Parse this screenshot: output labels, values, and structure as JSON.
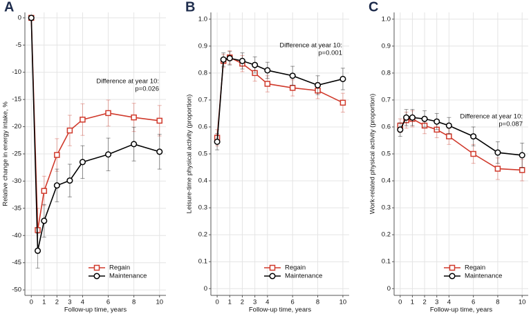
{
  "chart_data": [
    {
      "type": "line",
      "label": "A",
      "ylabel": "Relative change in energy intake, %",
      "xlabel": "Follow-up time, years",
      "annotation": [
        "Difference at year 10:",
        "p=0.026"
      ],
      "x": [
        0,
        0.5,
        1,
        2,
        3,
        4,
        6,
        8,
        10
      ],
      "xlim": [
        -0.5,
        10.5
      ],
      "xticks": [
        0,
        1,
        2,
        3,
        4,
        6,
        8,
        10
      ],
      "ylim": [
        -51,
        1
      ],
      "yticks": [
        0,
        -5,
        -10,
        -15,
        -20,
        -25,
        -30,
        -35,
        -40,
        -45,
        -50
      ],
      "grid": true,
      "series": [
        {
          "name": "Regain",
          "color": "#d0392b",
          "marker": "square",
          "values": [
            0,
            -39,
            -31.8,
            -25.2,
            -20.7,
            -18.7,
            -17.5,
            -18.3,
            -18.9
          ],
          "errors": [
            0,
            4,
            2.7,
            3,
            2.8,
            2.9,
            2.4,
            2.6,
            2.8
          ]
        },
        {
          "name": "Maintenance",
          "color": "#000000",
          "marker": "circle",
          "values": [
            0,
            -42.8,
            -37.3,
            -30.8,
            -29.9,
            -26.5,
            -25.1,
            -23.2,
            -24.6
          ],
          "errors": [
            0,
            3.2,
            3,
            3,
            3,
            3,
            3,
            3.1,
            3.2
          ]
        }
      ]
    },
    {
      "type": "line",
      "label": "B",
      "ylabel": "Leisure-time physical activity (proportion)",
      "xlabel": "Follow-up time, years",
      "annotation": [
        "Difference at year 10:",
        "p=0.001"
      ],
      "x": [
        0,
        0.5,
        1,
        2,
        3,
        4,
        6,
        8,
        10
      ],
      "xlim": [
        -0.5,
        10.5
      ],
      "xticks": [
        0,
        1,
        2,
        3,
        4,
        6,
        8,
        10
      ],
      "ylim": [
        -0.025,
        1.025
      ],
      "yticks": [
        {
          "value": 1,
          "label": "1.0"
        },
        0.9,
        0.8,
        0.7,
        0.6,
        0.5,
        0.4,
        0.3,
        0.2,
        0.1,
        0
      ],
      "grid": true,
      "series": [
        {
          "name": "Regain",
          "color": "#d0392b",
          "marker": "square",
          "values": [
            0.56,
            0.845,
            0.858,
            0.835,
            0.8,
            0.76,
            0.745,
            0.735,
            0.69
          ],
          "errors": [
            0.03,
            0.025,
            0.025,
            0.03,
            0.03,
            0.03,
            0.03,
            0.03,
            0.035
          ]
        },
        {
          "name": "Maintenance",
          "color": "#000000",
          "marker": "circle",
          "values": [
            0.545,
            0.85,
            0.855,
            0.845,
            0.83,
            0.81,
            0.79,
            0.755,
            0.778
          ],
          "errors": [
            0.03,
            0.025,
            0.025,
            0.03,
            0.03,
            0.03,
            0.035,
            0.035,
            0.04
          ]
        }
      ]
    },
    {
      "type": "line",
      "label": "C",
      "ylabel": "Work-related physical activity (proportion)",
      "xlabel": "Follow-up time, years",
      "annotation": [
        "Difference at year 10:",
        "p=0.087"
      ],
      "x": [
        0,
        0.5,
        1,
        2,
        3,
        4,
        6,
        8,
        10
      ],
      "xlim": [
        -0.5,
        10.5
      ],
      "xticks": [
        0,
        1,
        2,
        3,
        4,
        6,
        8,
        10
      ],
      "ylim": [
        -0.025,
        1.025
      ],
      "yticks": [
        {
          "value": 1,
          "label": "1.0"
        },
        0.9,
        0.8,
        0.7,
        0.6,
        0.5,
        0.4,
        0.3,
        0.2,
        0.1,
        0
      ],
      "grid": true,
      "series": [
        {
          "name": "Regain",
          "color": "#d0392b",
          "marker": "square",
          "values": [
            0.605,
            0.625,
            0.63,
            0.605,
            0.59,
            0.565,
            0.5,
            0.445,
            0.44
          ],
          "errors": [
            0.025,
            0.03,
            0.03,
            0.03,
            0.03,
            0.03,
            0.035,
            0.04,
            0.04
          ]
        },
        {
          "name": "Maintenance",
          "color": "#000000",
          "marker": "circle",
          "values": [
            0.59,
            0.635,
            0.635,
            0.63,
            0.62,
            0.605,
            0.565,
            0.505,
            0.495
          ],
          "errors": [
            0.025,
            0.03,
            0.03,
            0.03,
            0.03,
            0.03,
            0.035,
            0.04,
            0.045
          ]
        }
      ]
    }
  ]
}
